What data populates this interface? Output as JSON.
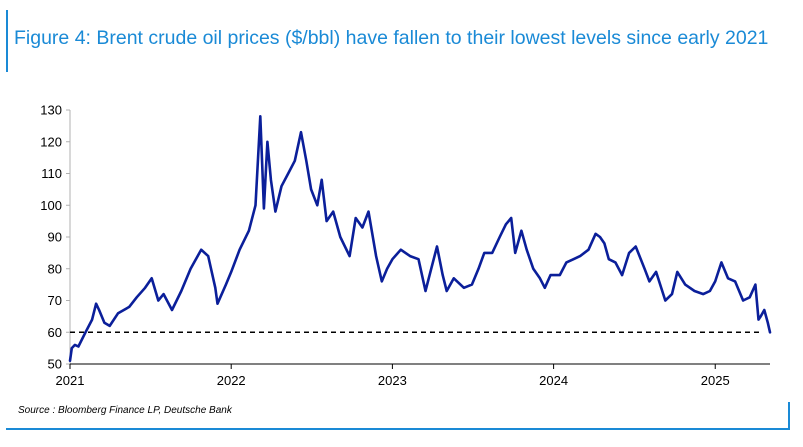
{
  "figure": {
    "title": "Figure 4: Brent crude oil prices ($/bbl) have fallen to their lowest levels since early 2021",
    "source": "Source : Bloomberg Finance LP, Deutsche Bank",
    "accent_color": "#1a8ad6"
  },
  "chart_data": {
    "type": "line",
    "title": "",
    "xlabel": "",
    "ylabel": "",
    "ylim": [
      50,
      130
    ],
    "yticks": [
      50,
      60,
      70,
      80,
      90,
      100,
      110,
      120,
      130
    ],
    "xlim": [
      "2021-01-01",
      "2025-05-05"
    ],
    "xticks": [
      {
        "label": "2021",
        "date": "2021-01-01"
      },
      {
        "label": "2022",
        "date": "2022-01-01"
      },
      {
        "label": "2023",
        "date": "2023-01-01"
      },
      {
        "label": "2024",
        "date": "2024-01-01"
      },
      {
        "label": "2025",
        "date": "2025-01-01"
      }
    ],
    "grid": false,
    "reference_line": {
      "y": 60,
      "style": "dashed",
      "color": "#000000"
    },
    "series": [
      {
        "color": "#0b1f9a",
        "x": [
          "2021-01-01",
          "2021-01-05",
          "2021-01-12",
          "2021-01-20",
          "2021-02-05",
          "2021-02-20",
          "2021-03-01",
          "2021-03-08",
          "2021-03-20",
          "2021-04-01",
          "2021-04-20",
          "2021-05-15",
          "2021-06-01",
          "2021-06-20",
          "2021-07-05",
          "2021-07-20",
          "2021-08-01",
          "2021-08-20",
          "2021-09-10",
          "2021-10-01",
          "2021-10-25",
          "2021-11-10",
          "2021-11-26",
          "2021-12-01",
          "2021-12-20",
          "2022-01-01",
          "2022-01-20",
          "2022-02-10",
          "2022-02-25",
          "2022-03-08",
          "2022-03-16",
          "2022-03-24",
          "2022-04-01",
          "2022-04-11",
          "2022-04-25",
          "2022-05-10",
          "2022-05-25",
          "2022-06-08",
          "2022-06-20",
          "2022-07-01",
          "2022-07-15",
          "2022-07-25",
          "2022-08-05",
          "2022-08-20",
          "2022-09-05",
          "2022-09-26",
          "2022-10-10",
          "2022-10-25",
          "2022-11-08",
          "2022-11-25",
          "2022-12-08",
          "2022-12-20",
          "2023-01-01",
          "2023-01-20",
          "2023-02-10",
          "2023-03-01",
          "2023-03-17",
          "2023-03-28",
          "2023-04-12",
          "2023-04-25",
          "2023-05-04",
          "2023-05-20",
          "2023-06-12",
          "2023-06-30",
          "2023-07-15",
          "2023-07-28",
          "2023-08-15",
          "2023-09-01",
          "2023-09-15",
          "2023-09-27",
          "2023-10-06",
          "2023-10-20",
          "2023-11-01",
          "2023-11-16",
          "2023-12-01",
          "2023-12-12",
          "2023-12-25",
          "2024-01-15",
          "2024-01-30",
          "2024-02-15",
          "2024-03-01",
          "2024-03-20",
          "2024-04-05",
          "2024-04-15",
          "2024-04-25",
          "2024-05-05",
          "2024-05-20",
          "2024-06-04",
          "2024-06-20",
          "2024-07-05",
          "2024-07-25",
          "2024-08-05",
          "2024-08-20",
          "2024-09-10",
          "2024-09-25",
          "2024-10-07",
          "2024-10-25",
          "2024-11-15",
          "2024-12-05",
          "2024-12-20",
          "2025-01-01",
          "2025-01-15",
          "2025-01-30",
          "2025-02-15",
          "2025-03-05",
          "2025-03-20",
          "2025-04-02",
          "2025-04-09",
          "2025-04-14",
          "2025-04-22",
          "2025-04-30",
          "2025-05-05"
        ],
        "y": [
          51,
          55,
          56,
          55.5,
          60,
          64,
          69,
          67,
          63,
          62,
          66,
          68,
          71,
          74,
          77,
          70,
          72,
          67,
          73,
          80,
          86,
          84,
          74,
          69,
          75,
          79,
          86,
          92,
          100,
          128,
          99,
          120,
          108,
          98,
          106,
          110,
          114,
          123,
          114,
          105,
          100,
          108,
          95,
          98,
          90,
          84,
          96,
          93,
          98,
          84,
          76,
          80,
          83,
          86,
          84,
          83,
          73,
          79,
          87,
          78,
          73,
          77,
          74,
          75,
          80,
          85,
          85,
          90,
          94,
          96,
          85,
          92,
          86,
          80,
          77,
          74,
          78,
          78,
          82,
          83,
          84,
          86,
          91,
          90,
          88,
          83,
          82,
          78,
          85,
          87,
          80,
          76,
          79,
          70,
          72,
          79,
          75,
          73,
          72,
          73,
          76,
          82,
          77,
          76,
          70,
          71,
          75,
          64,
          65,
          67,
          63,
          60
        ]
      }
    ]
  }
}
